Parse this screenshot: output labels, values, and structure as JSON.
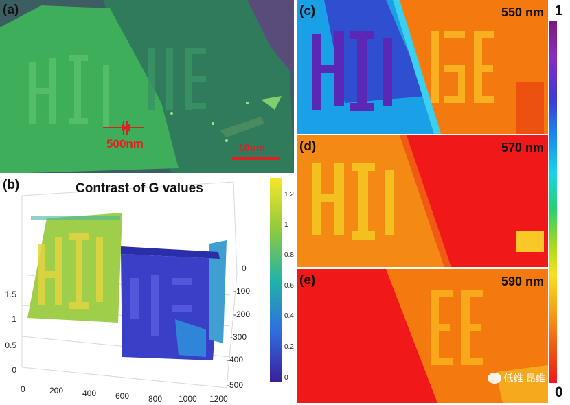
{
  "panel_a": {
    "label": "(a)",
    "measure_label": "500nm",
    "scalebar_label": "10um",
    "colors": {
      "outer": "#3f6b3f",
      "flake_left": "#3fb25f",
      "flake_center": "#2f8a5a",
      "red": "#e02020"
    }
  },
  "panel_b": {
    "label": "(b)",
    "title": "Contrast of G values",
    "colorbar_ticks": [
      "1.2",
      "1",
      "0.8",
      "0.6",
      "0.4",
      "0.2",
      "0"
    ],
    "x_ticks": [
      "0",
      "200",
      "400",
      "600",
      "800",
      "1000",
      "1200"
    ],
    "z_ticks": [
      "1.5",
      "1",
      "0.5",
      "0"
    ],
    "y_ticks": [
      "0",
      "-100",
      "-200",
      "-300",
      "-400",
      "-500"
    ]
  },
  "panel_c": {
    "label": "(c)",
    "wavelength": "550 nm"
  },
  "panel_d": {
    "label": "(d)",
    "wavelength": "570 nm"
  },
  "panel_e": {
    "label": "(e)",
    "wavelength": "590 nm"
  },
  "colorbar": {
    "top_label": "1",
    "bottom_label": "0"
  },
  "watermark": {
    "text": "低维 昂维"
  },
  "chart_data": {
    "type": "surface",
    "title": "Contrast of G values",
    "xlabel": "",
    "ylabel": "",
    "zlabel": "",
    "xlim": [
      0,
      1200
    ],
    "ylim": [
      -500,
      0
    ],
    "zlim": [
      0,
      1.5
    ],
    "colorbar_range": [
      0,
      1.2
    ]
  }
}
